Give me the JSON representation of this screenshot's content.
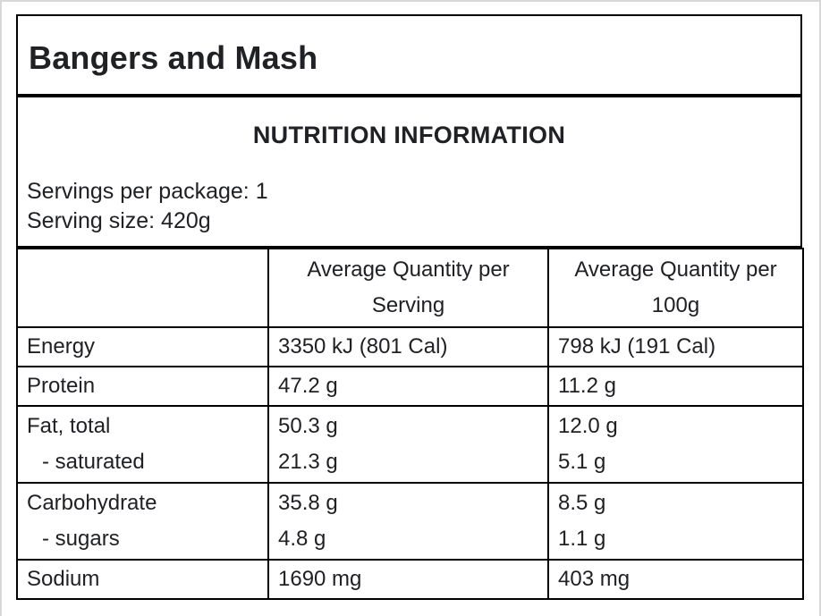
{
  "page": {
    "title": "Bangers and Mash"
  },
  "panel": {
    "heading": "NUTRITION INFORMATION",
    "servings_per_package": "Servings per package: 1",
    "serving_size": "Serving size: 420g"
  },
  "table": {
    "columns": [
      "",
      "Average Quantity per Serving",
      "Average Quantity per 100g"
    ],
    "rows": [
      {
        "name": "energy",
        "label": [
          "Energy"
        ],
        "per_serving": [
          "3350 kJ (801 Cal)"
        ],
        "per_100g": [
          "798 kJ (191 Cal)"
        ]
      },
      {
        "name": "protein",
        "label": [
          "Protein"
        ],
        "per_serving": [
          "47.2 g"
        ],
        "per_100g": [
          "11.2 g"
        ]
      },
      {
        "name": "fat",
        "label": [
          "Fat, total",
          "- saturated"
        ],
        "per_serving": [
          "50.3 g",
          "21.3 g"
        ],
        "per_100g": [
          "12.0 g",
          "5.1 g"
        ]
      },
      {
        "name": "carbohydrate",
        "label": [
          "Carbohydrate",
          "- sugars"
        ],
        "per_serving": [
          "35.8 g",
          "4.8 g"
        ],
        "per_100g": [
          "8.5 g",
          "1.1 g"
        ]
      },
      {
        "name": "sodium",
        "label": [
          "Sodium"
        ],
        "per_serving": [
          "1690 mg"
        ],
        "per_100g": [
          "403 mg"
        ]
      }
    ]
  },
  "colors": {
    "border_black": "#000000",
    "frame_gray": "#d8d8d8",
    "text": "#202124",
    "background": "#ffffff"
  }
}
